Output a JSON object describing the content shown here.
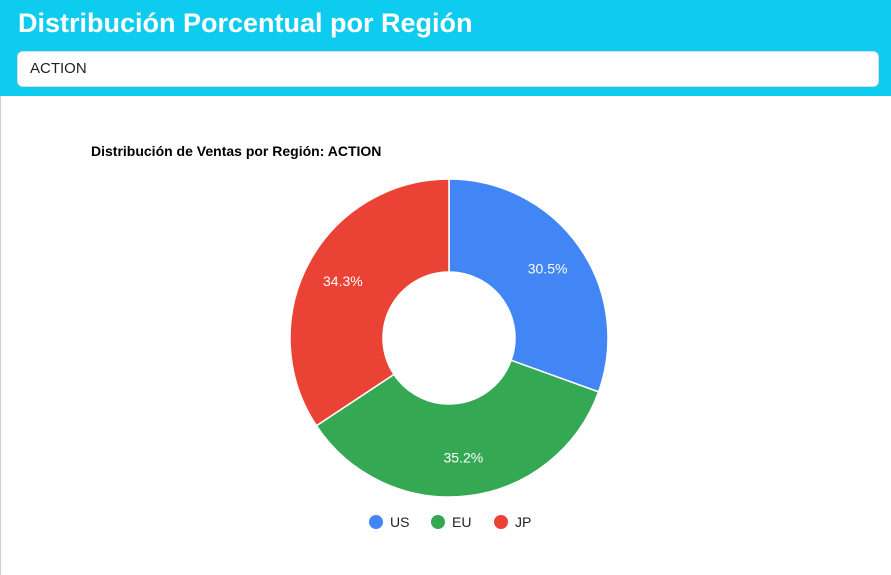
{
  "header": {
    "title": "Distribución Porcentual por Región"
  },
  "genre_select": {
    "value": "ACTION"
  },
  "chart_data": {
    "type": "pie",
    "donut": true,
    "title": "Distribución de Ventas por Región: ACTION",
    "categories": [
      "US",
      "EU",
      "JP"
    ],
    "values": [
      30.5,
      35.2,
      34.3
    ],
    "labels": [
      "30.5%",
      "35.2%",
      "34.3%"
    ],
    "colors": [
      "#4285f4",
      "#34a853",
      "#ea4335"
    ],
    "legend_position": "bottom",
    "start_angle_deg": 0,
    "direction": "clockwise"
  }
}
